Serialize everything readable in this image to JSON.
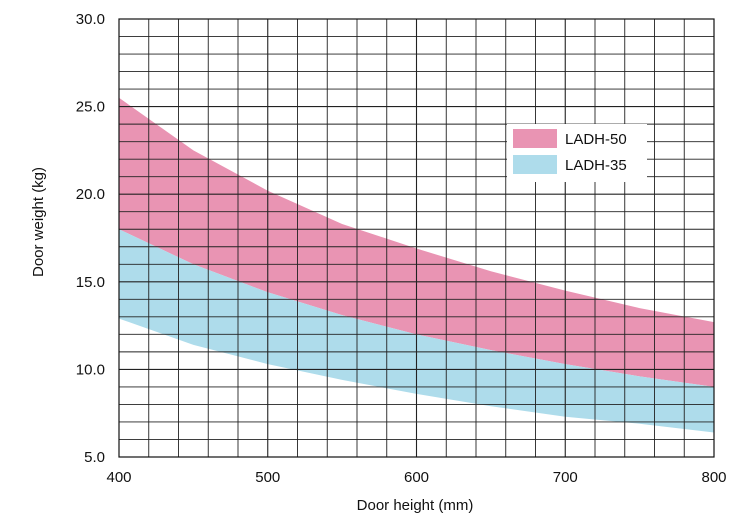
{
  "chart_data": {
    "type": "area",
    "xlabel": "Door height (mm)",
    "ylabel": "Door weight (kg)",
    "xlim": [
      400,
      800
    ],
    "ylim": [
      5,
      30
    ],
    "x_ticks": [
      "400",
      "500",
      "600",
      "700",
      "800"
    ],
    "y_ticks": [
      "5.0",
      "10.0",
      "15.0",
      "20.0",
      "25.0",
      "30.0"
    ],
    "grid": true,
    "legend_position": "top-right",
    "x": [
      400,
      450,
      500,
      550,
      600,
      650,
      700,
      750,
      800
    ],
    "series": [
      {
        "name": "LADH-50",
        "color": "#e994b3",
        "lower": [
          18.0,
          16.0,
          14.4,
          13.1,
          12.0,
          11.1,
          10.3,
          9.6,
          9.0
        ],
        "upper": [
          25.5,
          22.5,
          20.2,
          18.3,
          16.9,
          15.6,
          14.5,
          13.5,
          12.7
        ]
      },
      {
        "name": "LADH-35",
        "color": "#aedceb",
        "lower": [
          12.9,
          11.4,
          10.3,
          9.4,
          8.6,
          7.9,
          7.3,
          6.9,
          6.4
        ],
        "upper": [
          18.0,
          16.0,
          14.4,
          13.1,
          12.0,
          11.1,
          10.3,
          9.6,
          9.0
        ]
      }
    ]
  }
}
